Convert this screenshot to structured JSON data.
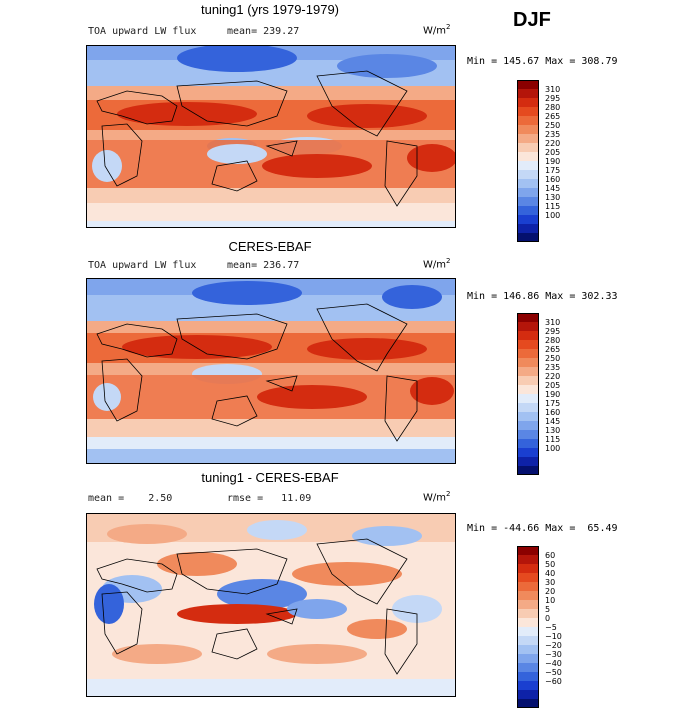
{
  "season": "DJF",
  "panels": [
    {
      "title": "tuning1 (yrs 1979-1979)",
      "variable": "TOA upward LW flux",
      "stat1": "mean= 239.27",
      "stat2": "",
      "units": "W/m",
      "units_exp": "2",
      "minmax": "Min = 145.67 Max = 308.79",
      "colorbar": {
        "labels": [
          "310",
          "295",
          "280",
          "265",
          "250",
          "235",
          "220",
          "205",
          "190",
          "175",
          "160",
          "145",
          "130",
          "115",
          "100"
        ],
        "colors": [
          "#8b0000",
          "#b4150a",
          "#d42c10",
          "#e54a1f",
          "#ec6a3a",
          "#f08a5c",
          "#f4aa86",
          "#f8ccb3",
          "#fbe6da",
          "#e2ecfa",
          "#c4d8f6",
          "#a2c1f2",
          "#7fa5ec",
          "#5a86e4",
          "#3463db",
          "#1a3fd0",
          "#0e22a8",
          "#04106e"
        ]
      }
    },
    {
      "title": "CERES-EBAF",
      "variable": "TOA upward LW flux",
      "stat1": "mean= 236.77",
      "stat2": "",
      "units": "W/m",
      "units_exp": "2",
      "minmax": "Min = 146.86 Max = 302.33",
      "colorbar": {
        "labels": [
          "310",
          "295",
          "280",
          "265",
          "250",
          "235",
          "220",
          "205",
          "190",
          "175",
          "160",
          "145",
          "130",
          "115",
          "100"
        ],
        "colors": [
          "#8b0000",
          "#b4150a",
          "#d42c10",
          "#e54a1f",
          "#ec6a3a",
          "#f08a5c",
          "#f4aa86",
          "#f8ccb3",
          "#fbe6da",
          "#e2ecfa",
          "#c4d8f6",
          "#a2c1f2",
          "#7fa5ec",
          "#5a86e4",
          "#3463db",
          "#1a3fd0",
          "#0e22a8",
          "#04106e"
        ]
      }
    },
    {
      "title": "tuning1 - CERES-EBAF",
      "variable": "",
      "stat1": "mean =    2.50",
      "stat2": "rmse =   11.09",
      "units": "W/m",
      "units_exp": "2",
      "minmax": "Min = -44.66 Max =  65.49",
      "colorbar": {
        "labels": [
          "60",
          "50",
          "40",
          "30",
          "20",
          "10",
          "5",
          "0",
          "−5",
          "−10",
          "−20",
          "−30",
          "−40",
          "−50",
          "−60"
        ],
        "colors": [
          "#8b0000",
          "#b4150a",
          "#d42c10",
          "#e54a1f",
          "#ec6a3a",
          "#f08a5c",
          "#f4aa86",
          "#f8ccb3",
          "#fbe6da",
          "#e2ecfa",
          "#c4d8f6",
          "#a2c1f2",
          "#7fa5ec",
          "#5a86e4",
          "#3463db",
          "#1a3fd0",
          "#0e22a8",
          "#04106e"
        ]
      }
    }
  ]
}
